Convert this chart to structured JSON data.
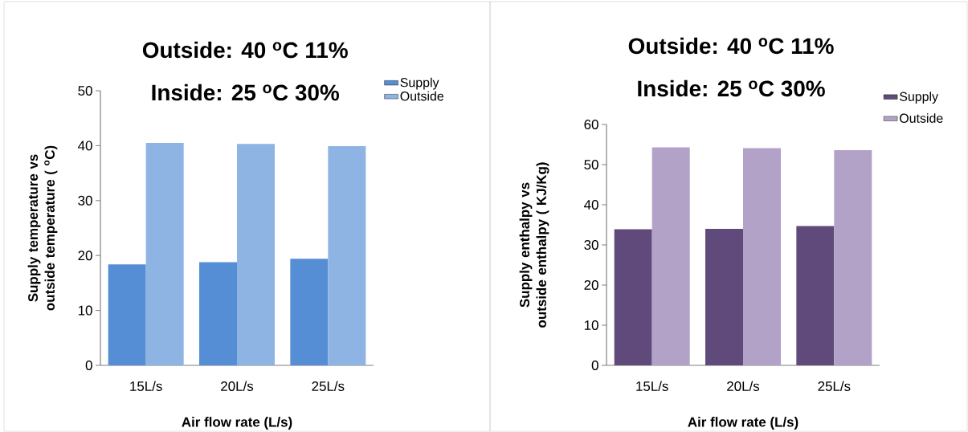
{
  "chart_data": [
    {
      "type": "bar",
      "title": "Outside: 40 $^{o}$C 11%",
      "subtitle": "Inside: 25 $^{o}$C 30%",
      "xlabel": "Air flow rate (L/s)",
      "ylabel": "Supply temperature vs outside temperature ( $^{o}$C)",
      "categories": [
        "15L/s",
        "20L/s",
        "25L/s"
      ],
      "series": [
        {
          "name": "Supply",
          "color": "#558ed5",
          "values": [
            18.4,
            18.8,
            19.4
          ]
        },
        {
          "name": "Outside",
          "color": "#8eb4e3",
          "values": [
            40.5,
            40.3,
            39.9
          ]
        }
      ],
      "ylim": [
        0,
        50
      ],
      "yticks": [
        0,
        10,
        20,
        30,
        40,
        50
      ],
      "legend": "right"
    },
    {
      "type": "bar",
      "title": "Outside: 40 $^{o}$C 11%",
      "subtitle": "Inside: 25 $^{o}$C 30%",
      "xlabel": "Air flow rate (L/s)",
      "ylabel": "Supply enthalpy vs outside enthalpy ( KJ/Kg)",
      "categories": [
        "15L/s",
        "20L/s",
        "25L/s"
      ],
      "series": [
        {
          "name": "Supply",
          "color": "#604a7b",
          "values": [
            33.9,
            34.0,
            34.7
          ]
        },
        {
          "name": "Outside",
          "color": "#b3a2c7",
          "values": [
            54.3,
            54.1,
            53.6
          ]
        }
      ],
      "ylim": [
        0,
        60
      ],
      "yticks": [
        0,
        10,
        20,
        30,
        40,
        50,
        60
      ],
      "legend": "right"
    }
  ]
}
